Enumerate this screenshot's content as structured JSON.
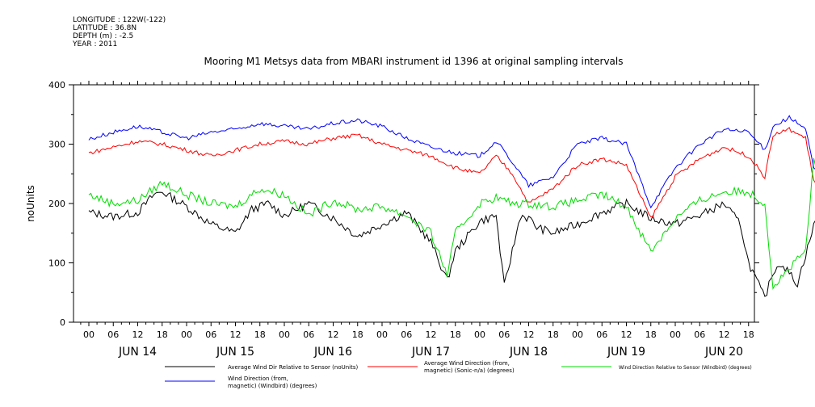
{
  "header": {
    "longitude": "LONGITUDE : 122W(-122)",
    "latitude": "LATITUDE : 36.8N",
    "depth": "DEPTH (m) : -2.5",
    "year": "YEAR : 2011"
  },
  "chart_data": {
    "type": "line",
    "title": "Mooring M1 Metsys data from MBARI instrument id 1396 at original sampling intervals",
    "ylabel": "noUnits",
    "xlabel": "",
    "ylim": [
      0,
      400
    ],
    "yticks": [
      0,
      100,
      200,
      300,
      400
    ],
    "xlim_hours": [
      0,
      184
    ],
    "hour_ticks": [
      "00",
      "06",
      "12",
      "18",
      "00",
      "06",
      "12",
      "18",
      "00",
      "06",
      "12",
      "18",
      "00",
      "06",
      "12",
      "18",
      "00",
      "06",
      "12",
      "18",
      "00",
      "06",
      "12",
      "18",
      "00",
      "06",
      "12",
      "18"
    ],
    "day_labels": [
      "JUN 14",
      "JUN 15",
      "JUN 16",
      "JUN 17",
      "JUN 18",
      "JUN 19",
      "JUN 20"
    ],
    "grid": false,
    "legend_position": "bottom",
    "series": [
      {
        "name": "Average Wind Dir Relative to Sensor (noUnits)",
        "color": "#000000",
        "x": [
          0,
          6,
          12,
          16,
          18,
          24,
          30,
          36,
          40,
          44,
          48,
          54,
          60,
          66,
          72,
          78,
          84,
          88,
          90,
          96,
          100,
          102,
          106,
          108,
          110,
          114,
          118,
          120,
          126,
          132,
          138,
          144,
          150,
          156,
          160,
          162,
          166,
          168,
          170,
          174,
          180,
          184
        ],
        "y": [
          185,
          178,
          185,
          215,
          220,
          195,
          165,
          150,
          190,
          200,
          180,
          200,
          175,
          145,
          165,
          185,
          135,
          70,
          120,
          170,
          180,
          60,
          180,
          175,
          160,
          150,
          160,
          165,
          185,
          200,
          175,
          165,
          180,
          200,
          165,
          100,
          40,
          85,
          100,
          65,
          210,
          185
        ]
      },
      {
        "name": "Average Wind Direction (from, magnetic) (Sonic-n/a) (degrees)",
        "color": "#ff0000",
        "x": [
          0,
          6,
          12,
          18,
          24,
          30,
          36,
          42,
          48,
          54,
          60,
          66,
          72,
          78,
          84,
          90,
          96,
          100,
          104,
          108,
          114,
          120,
          126,
          132,
          138,
          144,
          150,
          156,
          162,
          166,
          168,
          172,
          176,
          178,
          180,
          184
        ],
        "y": [
          285,
          295,
          305,
          300,
          290,
          280,
          290,
          300,
          305,
          300,
          310,
          315,
          300,
          290,
          280,
          260,
          250,
          280,
          250,
          200,
          225,
          265,
          275,
          265,
          175,
          245,
          275,
          295,
          280,
          245,
          315,
          325,
          310,
          240,
          215,
          200
        ]
      },
      {
        "name": "Wind Direction Relative to Sensor (Windbird) (degrees)",
        "color": "#00dd00",
        "x": [
          0,
          6,
          12,
          18,
          24,
          30,
          36,
          42,
          48,
          54,
          60,
          66,
          72,
          78,
          84,
          88,
          90,
          96,
          100,
          104,
          108,
          114,
          120,
          126,
          132,
          138,
          144,
          150,
          156,
          162,
          166,
          168,
          172,
          176,
          178,
          180,
          184
        ],
        "y": [
          215,
          200,
          205,
          235,
          215,
          200,
          195,
          225,
          215,
          180,
          205,
          190,
          195,
          180,
          150,
          80,
          150,
          200,
          210,
          200,
          200,
          195,
          205,
          215,
          195,
          120,
          175,
          205,
          220,
          220,
          200,
          60,
          90,
          120,
          270,
          230,
          220
        ]
      },
      {
        "name": "Wind Direction (from, magnetic) (Windbird) (degrees)",
        "color": "#0000ff",
        "x": [
          0,
          6,
          12,
          18,
          24,
          30,
          36,
          42,
          48,
          54,
          60,
          66,
          72,
          78,
          84,
          90,
          96,
          100,
          104,
          108,
          114,
          120,
          126,
          132,
          138,
          144,
          150,
          156,
          162,
          166,
          168,
          172,
          176,
          178,
          180,
          184
        ],
        "y": [
          308,
          320,
          330,
          320,
          310,
          320,
          325,
          335,
          330,
          325,
          335,
          340,
          330,
          310,
          295,
          285,
          280,
          305,
          270,
          230,
          245,
          300,
          310,
          300,
          195,
          260,
          300,
          325,
          320,
          290,
          330,
          345,
          325,
          260,
          240,
          215
        ]
      }
    ]
  }
}
